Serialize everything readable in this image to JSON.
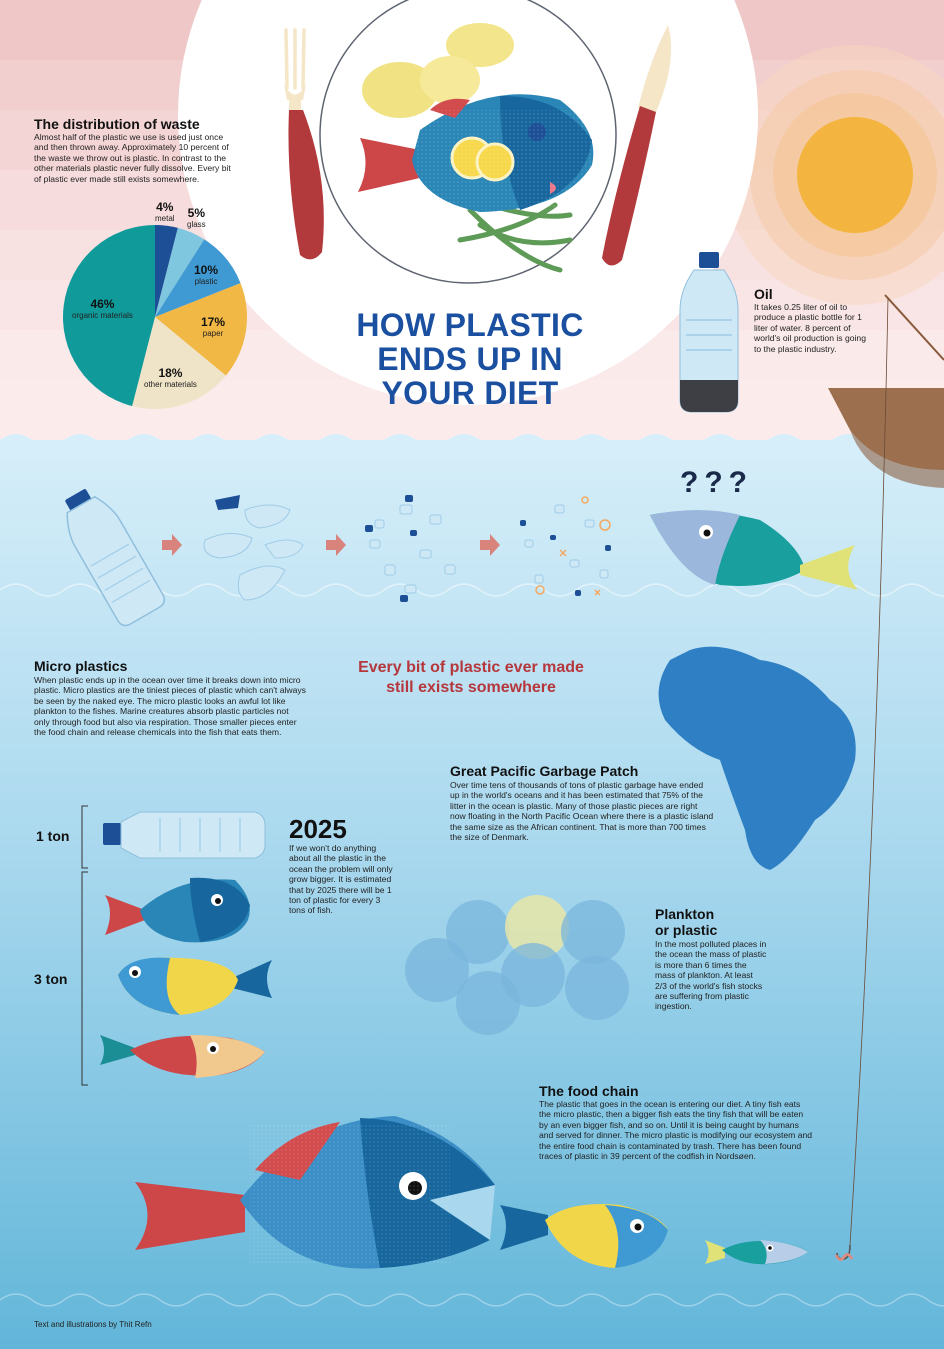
{
  "title": {
    "line1": "HOW PLASTIC",
    "line2": "ENDS UP IN",
    "line3": "YOUR DIET"
  },
  "waste": {
    "heading": "The distribution of waste",
    "body": "Almost half of the plastic we use is used just once and then thrown away. Approximately 10 percent of the waste we throw out is plastic. In contrast to the other materials plastic never fully dissolve. Every bit of plastic ever made still exists somewhere."
  },
  "chart_data": {
    "type": "pie",
    "slices": [
      {
        "pct": "4%",
        "label": "metal",
        "value": 4,
        "color": "#1d4f97"
      },
      {
        "pct": "5%",
        "label": "glass",
        "value": 5,
        "color": "#7fc6df"
      },
      {
        "pct": "10%",
        "label": "plastic",
        "value": 10,
        "color": "#3f9ad4"
      },
      {
        "pct": "17%",
        "label": "paper",
        "value": 17,
        "color": "#f2b845"
      },
      {
        "pct": "18%",
        "label": "other materials",
        "value": 18,
        "color": "#efe3c8"
      },
      {
        "pct": "46%",
        "label": "organic materials",
        "value": 46,
        "color": "#109a9a"
      }
    ]
  },
  "oil": {
    "heading": "Oil",
    "body": "It takes 0.25 liter of oil to produce a plastic bottle for 1 liter of water. 8 percent of world's oil production is going to the plastic industry."
  },
  "question_marks": "???",
  "micro": {
    "heading": "Micro plastics",
    "body": "When plastic ends up in the ocean over time it breaks down into micro plastic. Micro plastics are the tiniest pieces of plastic which can't always be seen by the naked eye. The micro plastic looks an awful lot like plankton to the fishes. Marine creatures absorb plastic particles not only through food but also via respiration. Those smaller pieces enter the food chain and release chemicals into the fish that eats them."
  },
  "quote": {
    "line1": "Every bit of plastic ever made",
    "line2": "still exists somewhere"
  },
  "gpgp": {
    "heading": "Great Pacific Garbage Patch",
    "body": "Over time tens of thousands of tons of plastic garbage have ended up in the world's oceans and it has been estimated that 75% of the litter in the ocean is plastic. Many of those plastic pieces are right now floating in the North Pacific Ocean where there is a plastic island the same size as the African continent. That is more than 700 times the size of Denmark."
  },
  "tons": {
    "one": "1 ton",
    "three": "3 ton"
  },
  "y2025": {
    "heading": "2025",
    "body": "If we won't do anything about all the plastic in the ocean the problem will only grow bigger. It is estimated that by 2025 there will be 1 ton of plastic for every 3 tons of fish."
  },
  "plankton": {
    "heading1": "Plankton",
    "heading2": "or plastic",
    "body": "In the most polluted places in the ocean the mass of plastic is more than 6 times the mass of plankton. At least 2/3 of the world's fish stocks are suffering from plastic ingestion."
  },
  "food_chain": {
    "heading": "The food chain",
    "body": "The plastic that goes in the ocean is entering our diet. A tiny fish eats the micro plastic, then a bigger fish eats the tiny fish that will be eaten by an even bigger fish, and so on. Until it is being caught by humans and served for dinner. The micro plastic is modifying our ecosystem and the entire food chain is contaminated by trash. There has been found traces of plastic in 39 percent of the codfish in Nordsøen."
  },
  "credit": "Text and illustrations by Thit Refn",
  "colors": {
    "sky_top": "#f0c9c8",
    "sky_bottom": "#fbe7e6",
    "sea_top": "#d4edf8",
    "sea_bottom": "#6bbcdc",
    "title_blue": "#1b4fa0",
    "quote_red": "#b5373c",
    "sun": "#f4b540"
  }
}
